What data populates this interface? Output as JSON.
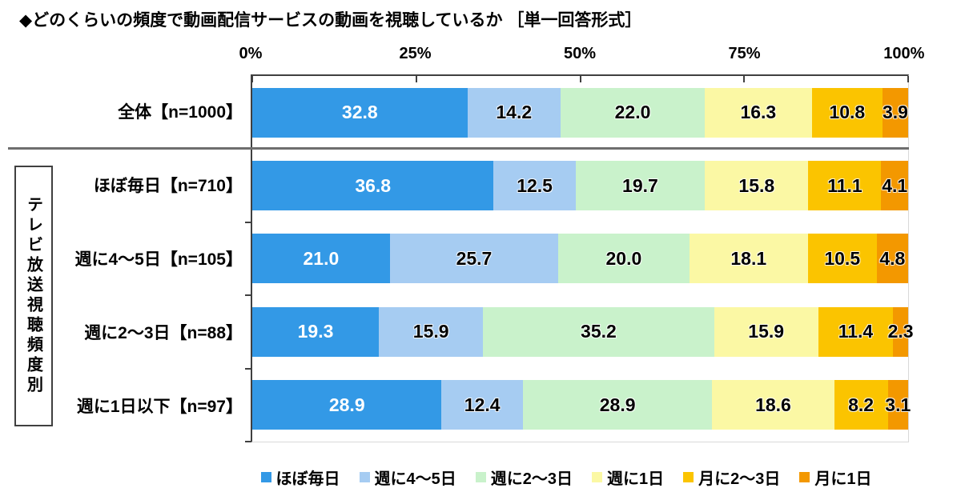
{
  "title": "◆どのくらいの頻度で動画配信サービスの動画を視聴しているか ［単一回答形式］",
  "group_label": "テレビ放送視聴頻度別",
  "axis": {
    "ticks": [
      "0%",
      "25%",
      "50%",
      "75%",
      "100%"
    ]
  },
  "legend": {
    "items": [
      {
        "label": "ほぼ毎日",
        "color": "#3399E6"
      },
      {
        "label": "週に4～5日",
        "color": "#A6CCF2"
      },
      {
        "label": "週に2～3日",
        "color": "#C9F2CB"
      },
      {
        "label": "週に1日",
        "color": "#FBF8A4"
      },
      {
        "label": "月に2～3日",
        "color": "#FBC400"
      },
      {
        "label": "月に1日",
        "color": "#F39800"
      }
    ]
  },
  "chart_data": {
    "type": "bar",
    "orientation": "horizontal",
    "stacked": true,
    "unit": "%",
    "xlim": [
      0,
      100
    ],
    "title": "◆どのくらいの頻度で動画配信サービスの動画を視聴しているか ［単一回答形式］",
    "x_ticks": [
      "0%",
      "25%",
      "50%",
      "75%",
      "100%"
    ],
    "legend_position": "bottom",
    "series_names": [
      "ほぼ毎日",
      "週に4～5日",
      "週に2～3日",
      "週に1日",
      "月に2～3日",
      "月に1日"
    ],
    "series_colors": [
      "#3399E6",
      "#A6CCF2",
      "#C9F2CB",
      "#FBF8A4",
      "#FBC400",
      "#F39800"
    ],
    "group_label": "テレビ放送視聴頻度別",
    "rows": [
      {
        "label": "全体【n=1000】",
        "group": "",
        "values": [
          32.8,
          14.2,
          22.0,
          16.3,
          10.8,
          3.9
        ]
      },
      {
        "label": "ほぼ毎日【n=710】",
        "group": "テレビ放送視聴頻度別",
        "values": [
          36.8,
          12.5,
          19.7,
          15.8,
          11.1,
          4.1
        ]
      },
      {
        "label": "週に4～5日【n=105】",
        "group": "テレビ放送視聴頻度別",
        "values": [
          21.0,
          25.7,
          20.0,
          18.1,
          10.5,
          4.8
        ]
      },
      {
        "label": "週に2～3日【n=88】",
        "group": "テレビ放送視聴頻度別",
        "values": [
          19.3,
          15.9,
          35.2,
          15.9,
          11.4,
          2.3
        ]
      },
      {
        "label": "週に1日以下【n=97】",
        "group": "テレビ放送視聴頻度別",
        "values": [
          28.9,
          12.4,
          28.9,
          18.6,
          8.2,
          3.1
        ]
      }
    ]
  }
}
